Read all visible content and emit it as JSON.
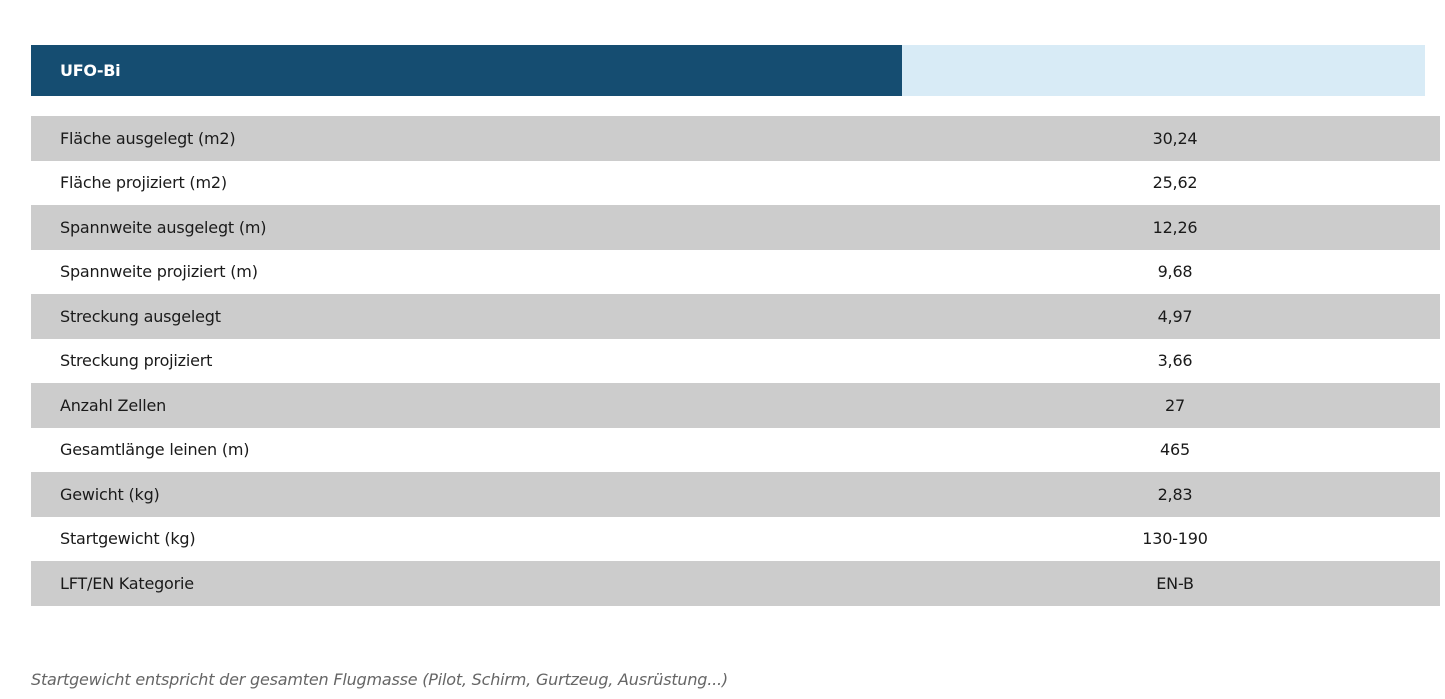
{
  "header": {
    "title": "UFO-Bi"
  },
  "specs": [
    {
      "label": "Fläche ausgelegt (m2)",
      "value": "30,24"
    },
    {
      "label": "Fläche projiziert (m2)",
      "value": "25,62"
    },
    {
      "label": "Spannweite ausgelegt (m)",
      "value": "12,26"
    },
    {
      "label": "Spannweite projiziert (m)",
      "value": "9,68"
    },
    {
      "label": "Streckung ausgelegt",
      "value": "4,97"
    },
    {
      "label": "Streckung projiziert",
      "value": "3,66"
    },
    {
      "label": "Anzahl Zellen",
      "value": "27"
    },
    {
      "label": "Gesamtlänge leinen (m)",
      "value": "465"
    },
    {
      "label": "Gewicht (kg)",
      "value": "2,83"
    },
    {
      "label": "Startgewicht (kg)",
      "value": "130-190"
    },
    {
      "label": "LFT/EN Kategorie",
      "value": "EN-B"
    }
  ],
  "footnote": "Startgewicht entspricht der gesamten Flugmasse (Pilot, Schirm, Gurtzeug, Ausrüstung...)",
  "colors": {
    "header_dark": "#154d71",
    "header_light": "#d8ebf6",
    "row_stripe": "#cccccc",
    "footnote_text": "#666666"
  }
}
